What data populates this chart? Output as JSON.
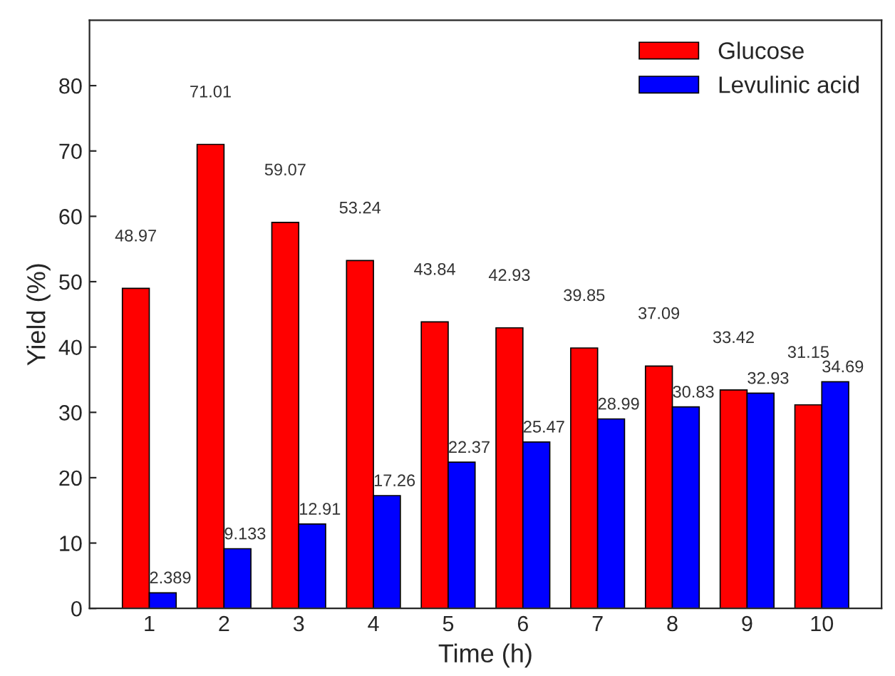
{
  "chart_data": {
    "type": "bar",
    "xlabel": "Time (h)",
    "ylabel": "Yield (%)",
    "categories": [
      "1",
      "2",
      "3",
      "4",
      "5",
      "6",
      "7",
      "8",
      "9",
      "10"
    ],
    "series": [
      {
        "name": "Glucose",
        "color": "#ff0000",
        "values": [
          48.97,
          71.01,
          59.07,
          53.24,
          43.84,
          42.93,
          39.85,
          37.09,
          33.42,
          31.15
        ]
      },
      {
        "name": "Levulinic acid",
        "color": "#0000ff",
        "values": [
          2.389,
          9.133,
          12.91,
          17.26,
          22.37,
          25.47,
          28.99,
          30.83,
          32.93,
          34.69
        ]
      }
    ],
    "ylim": [
      0,
      90
    ],
    "yticks": [
      0,
      10,
      20,
      30,
      40,
      50,
      60,
      70,
      80
    ],
    "data_labels": true,
    "legend": "top right",
    "grid": false
  }
}
